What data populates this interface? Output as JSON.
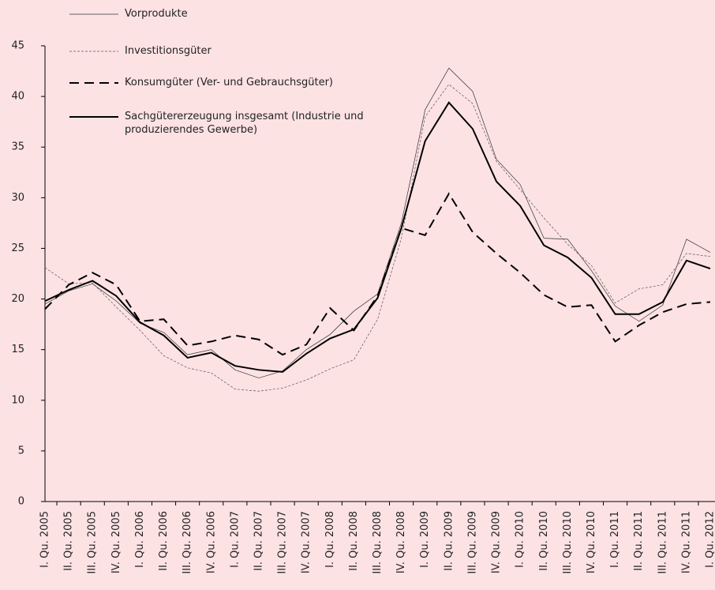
{
  "chart_data": {
    "type": "line",
    "categories": [
      "I. Qu. 2005",
      "II. Qu. 2005",
      "III. Qu. 2005",
      "IV. Qu. 2005",
      "I. Qu. 2006",
      "II. Qu. 2006",
      "III. Qu. 2006",
      "IV. Qu. 2006",
      "I. Qu. 2007",
      "II. Qu. 2007",
      "III. Qu. 2007",
      "IV. Qu. 2007",
      "I. Qu. 2008",
      "II. Qu. 2008",
      "III. Qu. 2008",
      "IV. Qu. 2008",
      "I. Qu. 2009",
      "II. Qu. 2009",
      "III. Qu. 2009",
      "IV. Qu. 2009",
      "I. Qu. 2010",
      "II. Qu. 2010",
      "III. Qu. 2010",
      "IV. Qu. 2010",
      "I. Qu. 2011",
      "II. Qu. 2011",
      "III. Qu. 2011",
      "IV. Qu. 2011",
      "I. Qu. 2012"
    ],
    "series": [
      {
        "name": "Vorprodukte",
        "color": "#333333",
        "width": 0.7,
        "dash": "none",
        "values": [
          19.5,
          20.8,
          21.5,
          19.8,
          17.6,
          16.7,
          14.5,
          15.0,
          13.0,
          12.2,
          12.9,
          15.0,
          16.5,
          18.8,
          20.5,
          27.5,
          38.7,
          42.8,
          40.5,
          33.8,
          31.3,
          26.0,
          25.9,
          22.8,
          19.3,
          17.8,
          19.4,
          25.9,
          24.6
        ]
      },
      {
        "name": "Investitionsgüter",
        "color": "#555555",
        "width": 0.7,
        "dash": "3 2",
        "values": [
          23.1,
          21.5,
          21.6,
          19.2,
          16.9,
          14.4,
          13.2,
          12.7,
          11.1,
          10.9,
          11.2,
          12.0,
          13.1,
          14.0,
          18.0,
          26.0,
          38.0,
          41.2,
          39.3,
          33.6,
          30.8,
          28.0,
          25.4,
          23.3,
          19.6,
          21.0,
          21.4,
          24.5,
          24.2
        ]
      },
      {
        "name": "Konsumgüter (Ver- und Gebrauchsgüter)",
        "color": "#000000",
        "width": 2,
        "dash": "12 7",
        "values": [
          19.0,
          21.4,
          22.6,
          21.4,
          17.8,
          18.0,
          15.4,
          15.8,
          16.4,
          16.0,
          14.5,
          15.5,
          19.1,
          16.9,
          20.3,
          27.0,
          26.3,
          30.4,
          26.6,
          24.5,
          22.6,
          20.4,
          19.2,
          19.4,
          15.8,
          17.4,
          18.7,
          19.5,
          19.7
        ]
      },
      {
        "name": "Sachgütererzeugung insgesamt (Industrie und produzierendes Gewerbe)",
        "color": "#000000",
        "width": 2,
        "dash": "none",
        "values": [
          19.8,
          20.9,
          21.8,
          20.3,
          17.7,
          16.4,
          14.2,
          14.7,
          13.4,
          13.0,
          12.8,
          14.6,
          16.1,
          17.0,
          20.1,
          27.0,
          35.6,
          39.4,
          36.8,
          31.6,
          29.2,
          25.3,
          24.1,
          22.1,
          18.5,
          18.5,
          19.7,
          23.8,
          23.0
        ]
      }
    ],
    "ylim": [
      0,
      45
    ],
    "yticks": [
      0,
      5,
      10,
      15,
      20,
      25,
      30,
      35,
      40,
      45
    ],
    "grid": false,
    "legend": "upper left"
  }
}
